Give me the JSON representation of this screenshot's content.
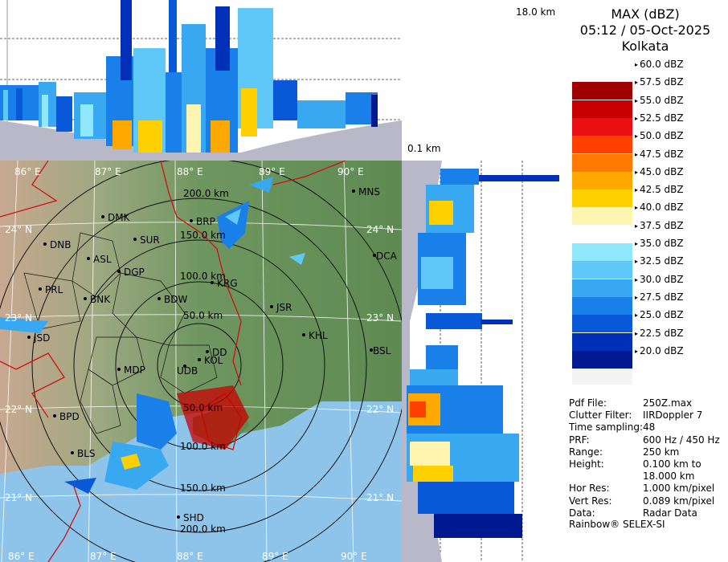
{
  "product": {
    "title": "MAX (dBZ)",
    "datetime": "05:12 / 05-Oct-2025",
    "station": "Kolkata"
  },
  "profile_labels": {
    "top_height": "18.0 km",
    "side_height": "0.1 km"
  },
  "color_scale": [
    {
      "label": "60.0 dBZ",
      "color": "#ffffff"
    },
    {
      "label": "57.5 dBZ",
      "color": "#a00000"
    },
    {
      "label": "55.0 dBZ",
      "color": "#c80000"
    },
    {
      "label": "52.5 dBZ",
      "color": "#e81010"
    },
    {
      "label": "50.0 dBZ",
      "color": "#ff4000"
    },
    {
      "label": "47.5 dBZ",
      "color": "#ff7800"
    },
    {
      "label": "45.0 dBZ",
      "color": "#ffa800"
    },
    {
      "label": "42.5 dBZ",
      "color": "#ffd000"
    },
    {
      "label": "40.0 dBZ",
      "color": "#fff4b0"
    },
    {
      "label": "37.5 dBZ",
      "color": "#ffffff"
    },
    {
      "label": "35.0 dBZ",
      "color": "#90e8ff"
    },
    {
      "label": "32.5 dBZ",
      "color": "#60c8f8"
    },
    {
      "label": "30.0 dBZ",
      "color": "#38a8f0"
    },
    {
      "label": "27.5 dBZ",
      "color": "#1880e8"
    },
    {
      "label": "25.0 dBZ",
      "color": "#0858d8"
    },
    {
      "label": "22.5 dBZ",
      "color": "#0030b8"
    },
    {
      "label": "20.0 dBZ",
      "color": "#001890"
    }
  ],
  "info": [
    {
      "key": "Pdf File:",
      "value": "250Z.max"
    },
    {
      "key": "Clutter Filter:",
      "value": "IIRDoppler 7"
    },
    {
      "key": "Time sampling:",
      "value": "48"
    },
    {
      "key": "PRF:",
      "value": "600 Hz / 450 Hz"
    },
    {
      "key": "Range:",
      "value": "250 km"
    },
    {
      "key": "Height:",
      "value": "0.100 km to"
    },
    {
      "key": "",
      "value": "18.000 km"
    },
    {
      "key": "Hor Res:",
      "value": "1.000 km/pixel"
    },
    {
      "key": "Vert Res:",
      "value": "0.089 km/pixel"
    },
    {
      "key": "Data:",
      "value": "Radar Data"
    }
  ],
  "footer": "Rainbow® SELEX-SI",
  "map": {
    "lon_labels": [
      "86° E",
      "87° E",
      "88° E",
      "89° E",
      "90° E"
    ],
    "lat_labels_left": [
      "24° N",
      "23° N",
      "22° N",
      "21° N"
    ],
    "lat_labels_right": [
      "24° N",
      "23° N",
      "22° N",
      "21° N"
    ],
    "range_labels": [
      "50.0 km",
      "100.0 km",
      "150.0 km",
      "200.0 km"
    ],
    "range_labels_south": [
      "50.0 km",
      "100.0 km",
      "150.0 km",
      "200.0 km"
    ],
    "cities": [
      "MNS",
      "DMK",
      "BRP",
      "DNB",
      "SUR",
      "ASL",
      "DGP",
      "DCA",
      "KRG",
      "PRL",
      "BNK",
      "BDW",
      "JSR",
      "KHL",
      "JSD",
      "DD",
      "KOL",
      "BSL",
      "MDP",
      "UDB",
      "BPD",
      "BLS",
      "SHD"
    ]
  }
}
